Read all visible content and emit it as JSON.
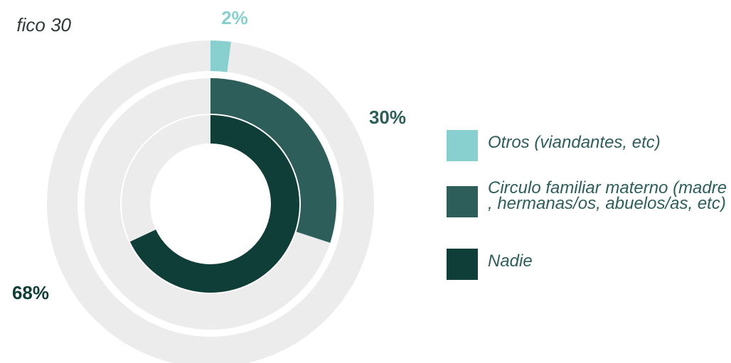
{
  "chart_data": {
    "type": "radial_bar",
    "title": "fico 30",
    "categories": [
      "Otros (viandantes, etc)",
      "Circulo familiar materno (madre , hermanas/os, abuelos/as, etc)",
      "Nadie"
    ],
    "values": [
      2,
      30,
      68
    ],
    "value_labels": [
      "2%",
      "30%",
      "68%"
    ],
    "colors": [
      "#88cfcf",
      "#2e5e5a",
      "#0f3d38"
    ],
    "ylim": [
      0,
      100
    ]
  }
}
